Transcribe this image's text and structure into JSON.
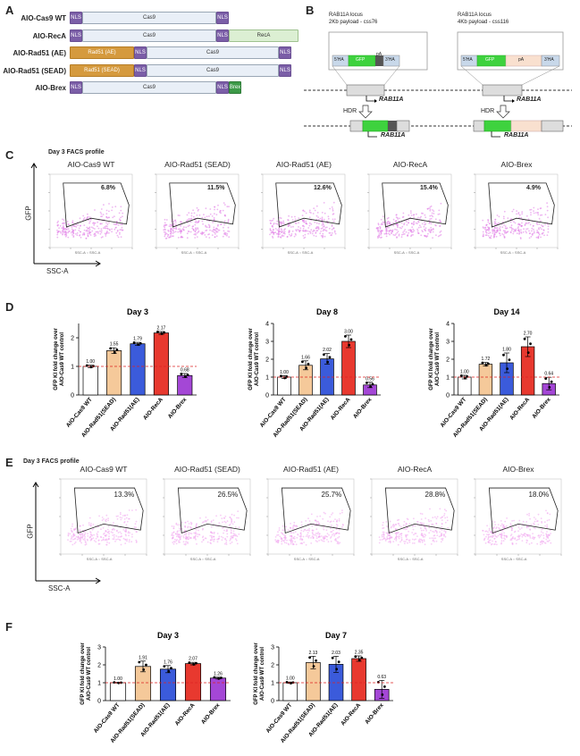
{
  "panel_a": {
    "label": "A",
    "constructs": [
      {
        "name": "AIO-Cas9 WT",
        "segments": [
          {
            "t": "NLS",
            "k": "nls"
          },
          {
            "t": "Cas9",
            "k": "cas"
          },
          {
            "t": "NLS",
            "k": "nls"
          }
        ]
      },
      {
        "name": "AIO-RecA",
        "segments": [
          {
            "t": "NLS",
            "k": "nls"
          },
          {
            "t": "Cas9",
            "k": "cas"
          },
          {
            "t": "NLS",
            "k": "nls"
          },
          {
            "t": "RecA",
            "k": "reca"
          }
        ]
      },
      {
        "name": "AIO-Rad51 (AE)",
        "segments": [
          {
            "t": "Rad51 (AE)",
            "k": "rad"
          },
          {
            "t": "NLS",
            "k": "nls"
          },
          {
            "t": "Cas9",
            "k": "cas"
          },
          {
            "t": "NLS",
            "k": "nls"
          }
        ]
      },
      {
        "name": "AIO-Rad51 (SEAD)",
        "segments": [
          {
            "t": "Rad51 (SEAD)",
            "k": "rad"
          },
          {
            "t": "NLS",
            "k": "nls"
          },
          {
            "t": "Cas9",
            "k": "cas"
          },
          {
            "t": "NLS",
            "k": "nls"
          }
        ]
      },
      {
        "name": "AIO-Brex",
        "segments": [
          {
            "t": "NLS",
            "k": "nls"
          },
          {
            "t": "Cas9",
            "k": "cas"
          },
          {
            "t": "NLS",
            "k": "nls"
          },
          {
            "t": "Brex",
            "k": "brex"
          }
        ]
      }
    ]
  },
  "panel_b": {
    "label": "B",
    "left": {
      "line1": "RAB11A locus",
      "line2": "2Kb payload - css76",
      "donor": [
        "5'HA",
        "GFP",
        "pA",
        "3'HA"
      ]
    },
    "right": {
      "line1": "RAB11A locus",
      "line2": "4Kb payload - css116",
      "donor": [
        "5'HA",
        "GFP",
        "pA",
        "3'HA"
      ]
    },
    "gene": "RAB11A",
    "hdr": "HDR"
  },
  "panel_c": {
    "label": "C",
    "title": "Day 3 FACS profile",
    "ylabel": "GFP",
    "xlabel": "SSC-A",
    "plots": [
      {
        "name": "AIO-Cas9 WT",
        "pct": "6.8%"
      },
      {
        "name": "AIO-Rad51 (SEAD)",
        "pct": "11.5%"
      },
      {
        "name": "AIO-Rad51 (AE)",
        "pct": "12.6%"
      },
      {
        "name": "AIO-RecA",
        "pct": "15.4%"
      },
      {
        "name": "AIO-Brex",
        "pct": "4.9%"
      }
    ]
  },
  "panel_d": {
    "label": "D"
  },
  "panel_e": {
    "label": "E",
    "title": "Day 3 FACS profile",
    "ylabel": "GFP",
    "xlabel": "SSC-A",
    "plots": [
      {
        "name": "AIO-Cas9 WT",
        "pct": "13.3%"
      },
      {
        "name": "AIO-Rad51 (SEAD)",
        "pct": "26.5%"
      },
      {
        "name": "AIO-Rad51 (AE)",
        "pct": "25.7%"
      },
      {
        "name": "AIO-RecA",
        "pct": "28.8%"
      },
      {
        "name": "AIO-Brex",
        "pct": "18.0%"
      }
    ]
  },
  "panel_f": {
    "label": "F"
  },
  "colors": {
    "white": "#ffffff",
    "peach": "#f5c99a",
    "blue": "#3b5bdb",
    "red": "#e8392f",
    "purple": "#a447d6",
    "dashed": "#d22"
  },
  "chart_data": [
    {
      "id": "D1",
      "type": "bar",
      "title": "Day 3",
      "ylabel": "GFP KI fold change over AIO-Cas9 WT control",
      "ylim": [
        0,
        2.5
      ],
      "yticks": [
        0,
        1,
        2
      ],
      "categories": [
        "AIO-Cas9 WT",
        "AIO-Rad51(SEAD)",
        "AIO-Rad51(AE)",
        "AIO-RecA",
        "AIO-Brex"
      ],
      "values": [
        1.0,
        1.55,
        1.79,
        2.17,
        0.68
      ],
      "labels": [
        "1.00",
        "1.55",
        "1.79",
        "2.17",
        "0.68"
      ],
      "errors": [
        0.04,
        0.1,
        0.05,
        0.05,
        0.07
      ]
    },
    {
      "id": "D2",
      "type": "bar",
      "title": "Day 8",
      "ylabel": "GFP KI fold change over AIO-Cas9 WT control",
      "ylim": [
        0,
        4
      ],
      "yticks": [
        0,
        1,
        2,
        3,
        4
      ],
      "categories": [
        "AIO-Cas9 WT",
        "AIO-Rad51(SEAD)",
        "AIO-Rad51(AE)",
        "AIO-RecA",
        "AIO-Brex"
      ],
      "values": [
        1.0,
        1.66,
        2.02,
        3.0,
        0.56
      ],
      "labels": [
        "1.00",
        "1.66",
        "2.02",
        "3.00",
        "0.56"
      ],
      "errors": [
        0.08,
        0.25,
        0.3,
        0.35,
        0.15
      ]
    },
    {
      "id": "D3",
      "type": "bar",
      "title": "Day 14",
      "ylabel": "GFP KI fold change over AIO-Cas9 WT control",
      "ylim": [
        0,
        4
      ],
      "yticks": [
        0,
        1,
        2,
        3,
        4
      ],
      "categories": [
        "AIO-Cas9 WT",
        "AIO-Rad51(SEAD)",
        "AIO-Rad51(AE)",
        "AIO-RecA",
        "AIO-Brex"
      ],
      "values": [
        1.0,
        1.72,
        1.8,
        2.7,
        0.64
      ],
      "labels": [
        "1.00",
        "1.72",
        "1.80",
        "2.70",
        "0.64"
      ],
      "errors": [
        0.1,
        0.1,
        0.55,
        0.55,
        0.35
      ]
    },
    {
      "id": "F1",
      "type": "bar",
      "title": "Day 3",
      "ylabel": "GFP KI fold change over AIO-Cas9 WT control",
      "ylim": [
        0,
        3
      ],
      "yticks": [
        0,
        1,
        2,
        3
      ],
      "categories": [
        "AIO-Cas9 WT",
        "AIO-Rad51(SEAD)",
        "AIO-Rad51(AE)",
        "AIO-RecA",
        "AIO-Brex"
      ],
      "values": [
        1.0,
        1.91,
        1.76,
        2.07,
        1.26
      ],
      "labels": [
        "1.00",
        "1.91",
        "1.76",
        "2.07",
        "1.26"
      ],
      "errors": [
        0.02,
        0.3,
        0.2,
        0.07,
        0.05
      ]
    },
    {
      "id": "F2",
      "type": "bar",
      "title": "Day 7",
      "ylabel": "GFP KI fold change over AIO-Cas9 WT control",
      "ylim": [
        0,
        3
      ],
      "yticks": [
        0,
        1,
        2,
        3
      ],
      "categories": [
        "AIO-Cas9 WT",
        "AIO-Rad51(SEAD)",
        "AIO-Rad51(AE)",
        "AIO-RecA",
        "AIO-Brex"
      ],
      "values": [
        1.0,
        2.13,
        2.03,
        2.35,
        0.63
      ],
      "labels": [
        "1.00",
        "2.13",
        "2.03",
        "2.35",
        "0.63"
      ],
      "errors": [
        0.04,
        0.35,
        0.45,
        0.15,
        0.5
      ]
    }
  ]
}
